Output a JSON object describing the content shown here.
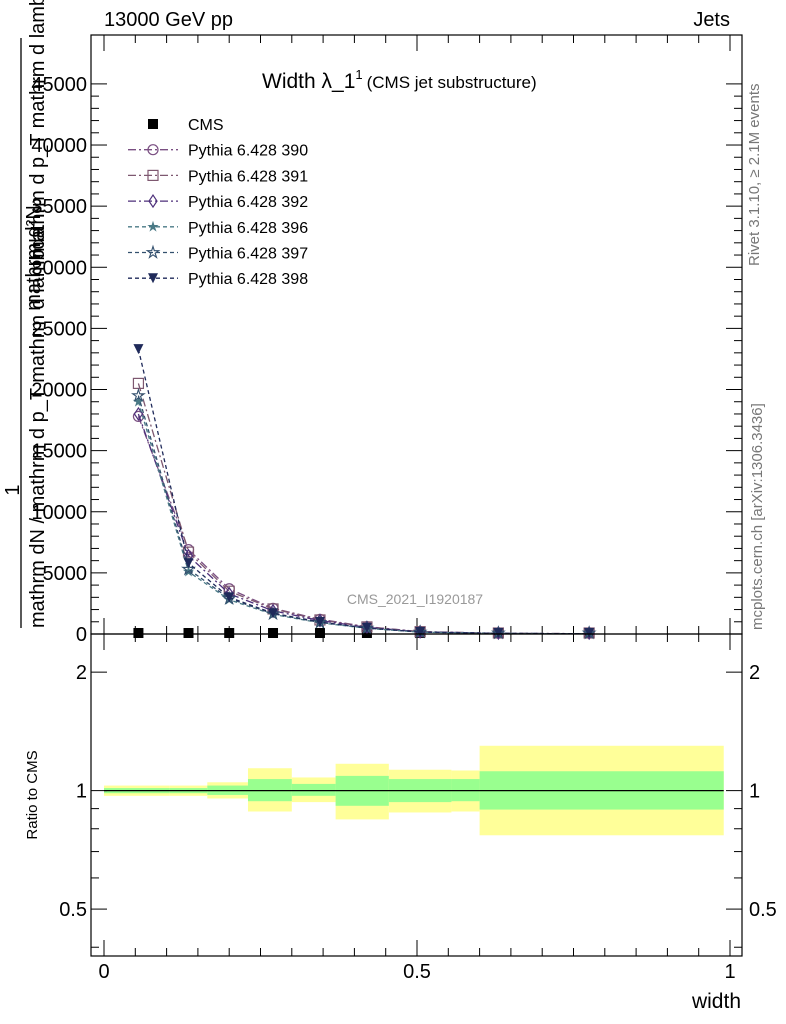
{
  "header": {
    "left": "13000 GeV pp",
    "right": "Jets"
  },
  "side": {
    "rivet": "Rivet 3.1.10, ≥ 2.1M events",
    "mcplots": "mcplots.cern.ch [arXiv:1306.3436]"
  },
  "chart_data": [
    {
      "type": "line",
      "title": "Width λ_1",
      "title_sup": "1",
      "subtitle": "(CMS jet substructure)",
      "watermark": "CMS_2021_I1920187",
      "ylabel_lines": [
        "1",
        "mathrm dN / mathrm d p_T mathrm d lambda",
        "mathrm d²N",
        "mathrm d p_T mathrm d lambda"
      ],
      "ylabel_sub": "T",
      "ylim": [
        0,
        49000
      ],
      "yticks": [
        0,
        5000,
        10000,
        15000,
        20000,
        25000,
        30000,
        35000,
        40000,
        45000
      ],
      "ytick_labels": [
        "0",
        "5000",
        "10000",
        "15000",
        "20000",
        "25000",
        "30000",
        "35000",
        "40000",
        "45000"
      ],
      "xlim": [
        -0.02,
        1.02
      ],
      "x": [
        0.055,
        0.135,
        0.2,
        0.27,
        0.345,
        0.42,
        0.505,
        0.63,
        0.775
      ],
      "legend_position": "top-left",
      "series": [
        {
          "name": "CMS",
          "color": "#000000",
          "marker": "square-filled",
          "dash": "none",
          "values": [
            40,
            30,
            25,
            20,
            15,
            10,
            5,
            2,
            1
          ]
        },
        {
          "name": "Pythia 6.428 390",
          "color": "#7a4f82",
          "marker": "circle-open",
          "dash": "8,3,2,3",
          "values": [
            17800,
            6900,
            3700,
            2100,
            1200,
            600,
            200,
            60,
            25
          ]
        },
        {
          "name": "Pythia 6.428 391",
          "color": "#7e5870",
          "marker": "square-open",
          "dash": "8,3,2,3",
          "values": [
            20500,
            6700,
            3500,
            2050,
            1150,
            580,
            190,
            55,
            22
          ]
        },
        {
          "name": "Pythia 6.428 392",
          "color": "#4d2f7a",
          "marker": "diamond-open",
          "dash": "8,3,2,3",
          "values": [
            18000,
            6400,
            3300,
            1900,
            1100,
            540,
            180,
            50,
            20
          ]
        },
        {
          "name": "Pythia 6.428 396",
          "color": "#4a7a86",
          "marker": "star-filled",
          "dash": "4,3",
          "values": [
            19000,
            5100,
            2800,
            1600,
            920,
            470,
            150,
            45,
            18
          ]
        },
        {
          "name": "Pythia 6.428 397",
          "color": "#33506e",
          "marker": "star-open",
          "dash": "4,3",
          "values": [
            19500,
            5300,
            2900,
            1650,
            950,
            480,
            155,
            46,
            19
          ]
        },
        {
          "name": "Pythia 6.428 398",
          "color": "#1f2a5a",
          "marker": "triangle-down-filled",
          "dash": "4,3",
          "values": [
            23300,
            5800,
            3000,
            1700,
            980,
            500,
            160,
            48,
            19
          ]
        }
      ]
    },
    {
      "type": "area",
      "ylabel": "Ratio to CMS",
      "xlabel": "width",
      "log_scale_y": true,
      "ylim": [
        0.38,
        2.5
      ],
      "yticks": [
        0.5,
        1,
        2
      ],
      "ytick_labels": [
        "0.5",
        "1",
        "2"
      ],
      "xticks": [
        0,
        0.5,
        1
      ],
      "xtick_labels": [
        "0",
        "0.5",
        "1"
      ],
      "bands": [
        {
          "x0": 0.0,
          "x1": 0.105,
          "inner_lo": 0.985,
          "inner_hi": 1.015,
          "outer_lo": 0.97,
          "outer_hi": 1.03
        },
        {
          "x0": 0.105,
          "x1": 0.165,
          "inner_lo": 0.985,
          "inner_hi": 1.015,
          "outer_lo": 0.97,
          "outer_hi": 1.03
        },
        {
          "x0": 0.165,
          "x1": 0.23,
          "inner_lo": 0.975,
          "inner_hi": 1.03,
          "outer_lo": 0.955,
          "outer_hi": 1.05
        },
        {
          "x0": 0.23,
          "x1": 0.3,
          "inner_lo": 0.94,
          "inner_hi": 1.07,
          "outer_lo": 0.885,
          "outer_hi": 1.14
        },
        {
          "x0": 0.3,
          "x1": 0.37,
          "inner_lo": 0.97,
          "inner_hi": 1.04,
          "outer_lo": 0.935,
          "outer_hi": 1.08
        },
        {
          "x0": 0.37,
          "x1": 0.455,
          "inner_lo": 0.915,
          "inner_hi": 1.09,
          "outer_lo": 0.845,
          "outer_hi": 1.17
        },
        {
          "x0": 0.455,
          "x1": 0.555,
          "inner_lo": 0.935,
          "inner_hi": 1.07,
          "outer_lo": 0.88,
          "outer_hi": 1.13
        },
        {
          "x0": 0.555,
          "x1": 0.6,
          "inner_lo": 0.94,
          "inner_hi": 1.07,
          "outer_lo": 0.885,
          "outer_hi": 1.125
        },
        {
          "x0": 0.6,
          "x1": 0.99,
          "inner_lo": 0.895,
          "inner_hi": 1.12,
          "outer_lo": 0.77,
          "outer_hi": 1.3
        }
      ],
      "colors": {
        "inner": "#99ff8f",
        "outer": "#ffff99",
        "reference": "#000000"
      }
    }
  ]
}
